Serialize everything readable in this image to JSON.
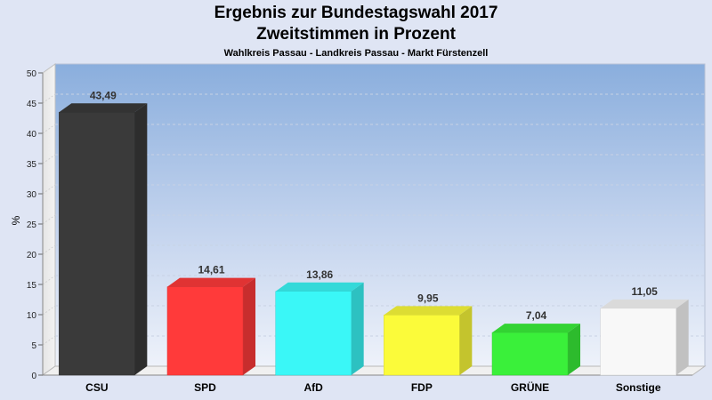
{
  "chart_data": {
    "type": "bar",
    "title": "Ergebnis zur Bundestagswahl 2017",
    "subtitle": "Zweitstimmen in Prozent",
    "caption": "Wahlkreis Passau - Landkreis Passau - Markt Fürstenzell",
    "ylabel": "%",
    "ylim": [
      0,
      50
    ],
    "yticks": [
      0,
      5,
      10,
      15,
      20,
      25,
      30,
      35,
      40,
      45,
      50
    ],
    "grid": true,
    "categories": [
      "CSU",
      "SPD",
      "AfD",
      "FDP",
      "GRÜNE",
      "Sonstige"
    ],
    "values": [
      43.49,
      14.61,
      13.86,
      9.95,
      7.04,
      11.05
    ],
    "value_labels": [
      "43,49",
      "14,61",
      "13,86",
      "9,95",
      "7,04",
      "11,05"
    ],
    "colors": [
      "#3a3a3a",
      "#ff3a3a",
      "#3af7f7",
      "#fbfb3a",
      "#3af03a",
      "#f8f8f8"
    ]
  }
}
